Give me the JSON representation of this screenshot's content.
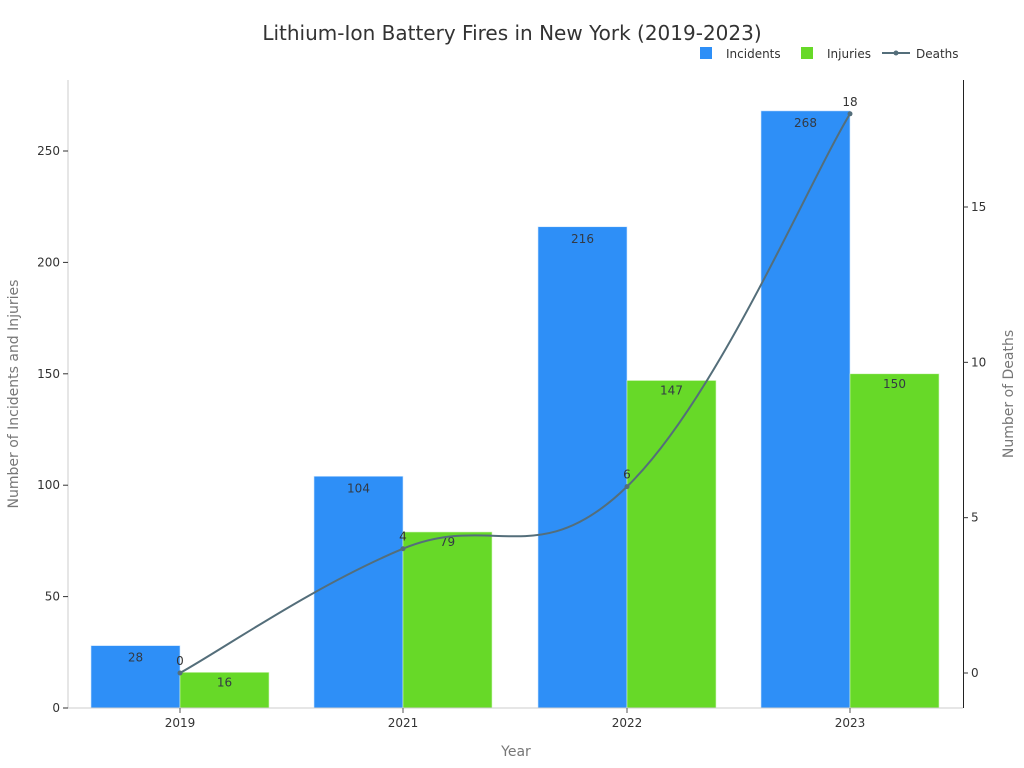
{
  "chart_data": {
    "type": "bar",
    "title": "Lithium-Ion Battery Fires in New York (2019-2023)",
    "xlabel": "Year",
    "ylabel": "Number of Incidents and Injuries",
    "y2label": "Number of Deaths",
    "categories": [
      "2019",
      "2021",
      "2022",
      "2023"
    ],
    "series": [
      {
        "name": "Incidents",
        "type": "bar",
        "axis": "left",
        "color": "#2e8ff7",
        "values": [
          28,
          104,
          216,
          268
        ]
      },
      {
        "name": "Injuries",
        "type": "bar",
        "axis": "left",
        "color": "#67d928",
        "values": [
          16,
          79,
          147,
          150
        ]
      },
      {
        "name": "Deaths",
        "type": "line",
        "axis": "right",
        "color": "#546e7a",
        "values": [
          0,
          4,
          6,
          18
        ]
      }
    ],
    "ylim": [
      0,
      275
    ],
    "yticks": [
      0,
      50,
      100,
      150,
      200,
      250
    ],
    "y2lim": [
      -1,
      19
    ],
    "y2ticks": [
      0,
      5,
      10,
      15
    ],
    "legend_position": "top-right",
    "grid": false
  },
  "legend": {
    "incidents": "Incidents",
    "injuries": "Injuries",
    "deaths": "Deaths"
  }
}
